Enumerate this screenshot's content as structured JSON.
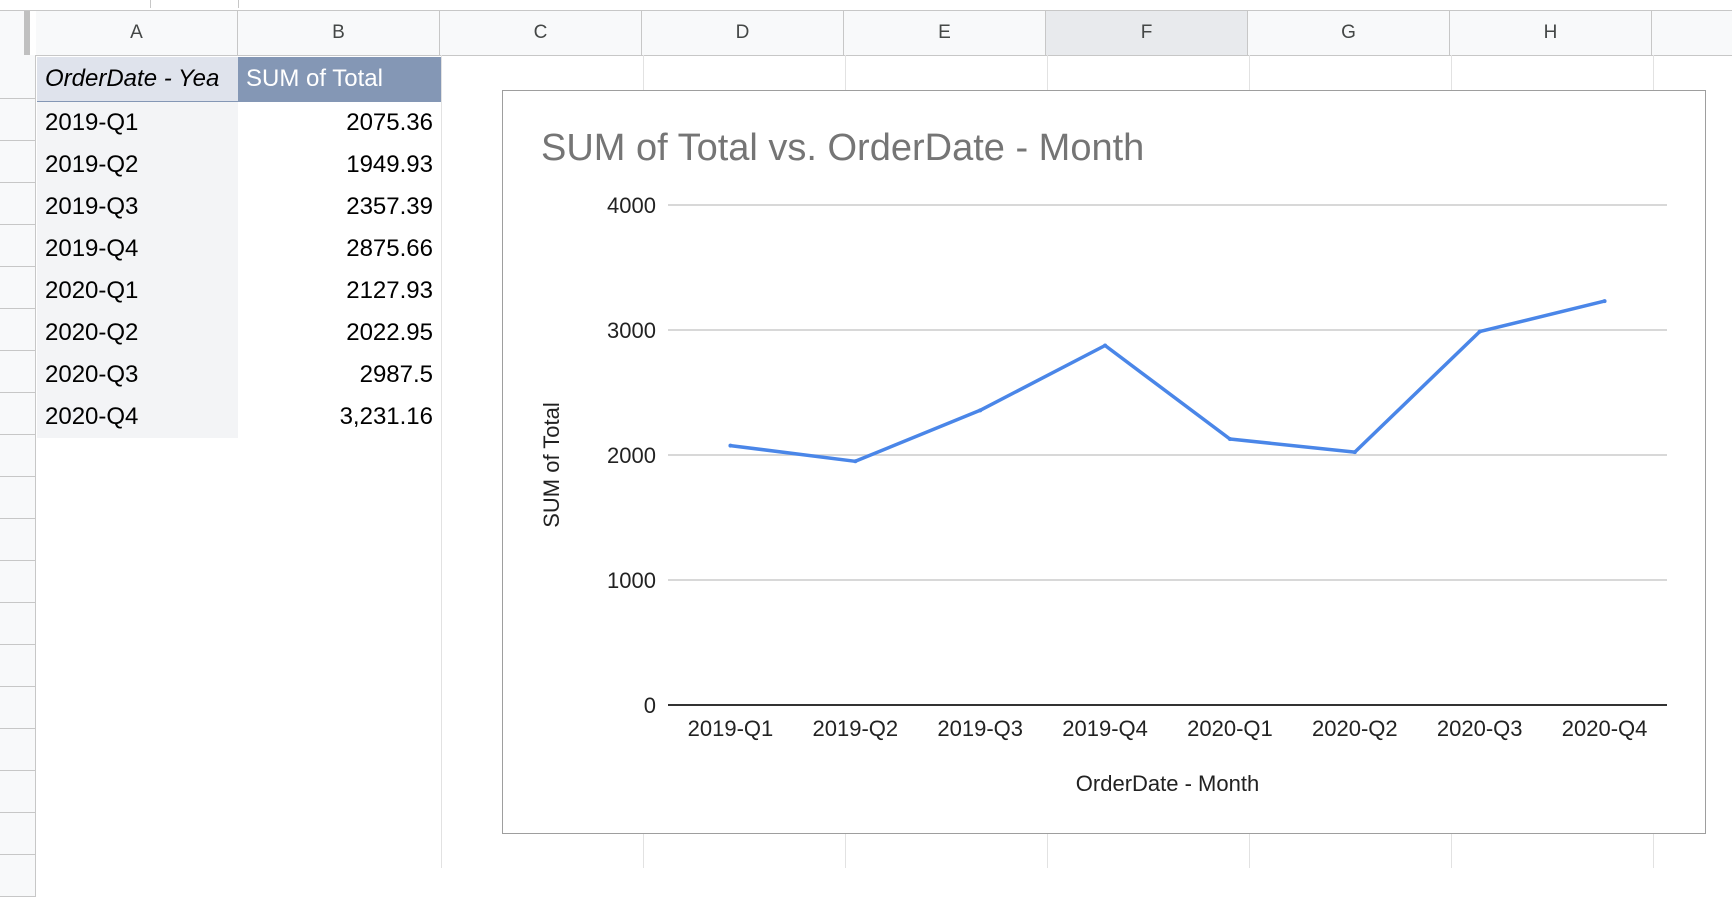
{
  "sheet": {
    "columns": [
      "A",
      "B",
      "C",
      "D",
      "E",
      "F",
      "G",
      "H"
    ],
    "selected_column": "F"
  },
  "pivot": {
    "header_a": "OrderDate - Yea",
    "header_b": "SUM of Total",
    "rows": [
      {
        "label": "2019-Q1",
        "value": "2075.36"
      },
      {
        "label": "2019-Q2",
        "value": "1949.93"
      },
      {
        "label": "2019-Q3",
        "value": "2357.39"
      },
      {
        "label": "2019-Q4",
        "value": "2875.66"
      },
      {
        "label": "2020-Q1",
        "value": "2127.93"
      },
      {
        "label": "2020-Q2",
        "value": "2022.95"
      },
      {
        "label": "2020-Q3",
        "value": "2987.5"
      },
      {
        "label": "2020-Q4",
        "value": "3,231.16"
      }
    ]
  },
  "colors": {
    "series": "#4a86e8",
    "gridline": "#cccccc",
    "header_blue": "#8497b5"
  },
  "chart_data": {
    "type": "line",
    "title": "SUM of Total vs. OrderDate - Month",
    "xlabel": "OrderDate - Month",
    "ylabel": "SUM of Total",
    "categories": [
      "2019-Q1",
      "2019-Q2",
      "2019-Q3",
      "2019-Q4",
      "2020-Q1",
      "2020-Q2",
      "2020-Q3",
      "2020-Q4"
    ],
    "values": [
      2075.36,
      1949.93,
      2357.39,
      2875.66,
      2127.93,
      2022.95,
      2987.5,
      3231.16
    ],
    "ylim": [
      0,
      4000
    ],
    "yticks": [
      "0",
      "1000",
      "2000",
      "3000",
      "4000"
    ],
    "grid": true,
    "legend": "none"
  }
}
